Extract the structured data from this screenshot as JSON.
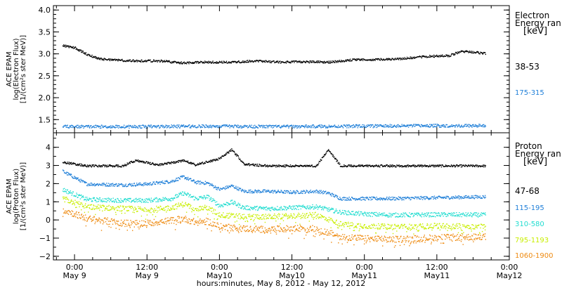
{
  "xlabel": "hours:minutes, May  8, 2012 - May 12, 2012",
  "x_ticks": [
    {
      "t": "0:00",
      "d": "May 9"
    },
    {
      "t": "12:00",
      "d": "May 9"
    },
    {
      "t": "0:00",
      "d": "May10"
    },
    {
      "t": "12:00",
      "d": "May10"
    },
    {
      "t": "0:00",
      "d": "May11"
    },
    {
      "t": "12:00",
      "d": "May11"
    },
    {
      "t": "0:00",
      "d": "May12"
    }
  ],
  "colors": {
    "black": "#000000",
    "blue": "#1f7fd8",
    "cyan": "#22ddd0",
    "yellow": "#c8ee00",
    "orange": "#ee8a10"
  },
  "chart_data": [
    {
      "type": "scatter",
      "title": "",
      "ylabel": [
        "ACE EPAM",
        "log(Electron Flux)",
        "[1/(cm²s ster MeV)]"
      ],
      "ylim": [
        1.2,
        4.1
      ],
      "yticks": [
        "1.5",
        "2.0",
        "2.5",
        "3.0",
        "3.5",
        "4.0"
      ],
      "xlim_hours": [
        -3.5,
        72
      ],
      "legend": {
        "title": [
          "Electron",
          "Energy ran"
        ],
        "unit": "[keV]",
        "entries": [
          {
            "label": "38-53",
            "color": "#000000"
          },
          {
            "label": "175-315",
            "color": "#1f7fd8"
          }
        ]
      },
      "series": [
        {
          "name": "38-53",
          "color": "#000000",
          "x": [
            -2,
            0,
            2,
            4,
            6,
            10,
            14,
            18,
            20,
            22,
            26,
            30,
            34,
            38,
            42,
            46,
            50,
            54,
            58,
            62,
            64,
            66,
            68
          ],
          "y": [
            3.2,
            3.15,
            3.0,
            2.9,
            2.87,
            2.85,
            2.85,
            2.8,
            2.82,
            2.82,
            2.82,
            2.85,
            2.82,
            2.83,
            2.82,
            2.87,
            2.88,
            2.9,
            2.95,
            2.97,
            3.07,
            3.05,
            3.02
          ]
        },
        {
          "name": "175-315",
          "color": "#1f7fd8",
          "x": [
            -2,
            10,
            22,
            34,
            46,
            58,
            68
          ],
          "y": [
            1.35,
            1.35,
            1.36,
            1.35,
            1.36,
            1.37,
            1.37
          ]
        }
      ]
    },
    {
      "type": "scatter",
      "title": "",
      "ylabel": [
        "ACE EPAM",
        "log(Proton Flux)",
        "[1/(cm²s ster MeV)]"
      ],
      "ylim": [
        -2.2,
        4.8
      ],
      "yticks": [
        "−2",
        "−1",
        "0",
        "1",
        "2",
        "3",
        "4"
      ],
      "xlim_hours": [
        -3.5,
        72
      ],
      "legend": {
        "title": [
          "Proton",
          "Energy ran"
        ],
        "unit": "[keV]",
        "entries": [
          {
            "label": "47-68",
            "color": "#000000"
          },
          {
            "label": "115-195",
            "color": "#1f7fd8"
          },
          {
            "label": "310-580",
            "color": "#22ddd0"
          },
          {
            "label": "795-1193",
            "color": "#c8ee00"
          },
          {
            "label": "1060-1900",
            "color": "#ee8a10"
          }
        ]
      },
      "series": [
        {
          "name": "47-68",
          "color": "#000000",
          "x": [
            -2,
            2,
            8,
            10,
            14,
            18,
            20,
            24,
            26,
            28,
            32,
            36,
            40,
            42,
            44,
            48,
            56,
            68
          ],
          "y": [
            3.2,
            3.0,
            3.0,
            3.3,
            3.05,
            3.3,
            3.05,
            3.4,
            3.9,
            3.1,
            3.0,
            3.0,
            3.0,
            3.9,
            3.0,
            3.0,
            3.0,
            3.0
          ]
        },
        {
          "name": "115-195",
          "color": "#1f7fd8",
          "x": [
            -2,
            2,
            8,
            12,
            16,
            18,
            20,
            22,
            24,
            26,
            28,
            32,
            36,
            40,
            42,
            44,
            46,
            52,
            60,
            68
          ],
          "y": [
            2.7,
            2.0,
            1.95,
            2.0,
            2.15,
            2.4,
            2.1,
            2.05,
            1.7,
            1.9,
            1.6,
            1.6,
            1.55,
            1.6,
            1.5,
            1.2,
            1.2,
            1.2,
            1.25,
            1.3
          ]
        },
        {
          "name": "310-580",
          "color": "#22ddd0",
          "x": [
            -2,
            2,
            8,
            12,
            16,
            18,
            20,
            22,
            24,
            26,
            28,
            32,
            36,
            40,
            44,
            48,
            52,
            56,
            60,
            68
          ],
          "y": [
            1.7,
            1.15,
            1.1,
            1.1,
            1.2,
            1.5,
            1.2,
            1.3,
            0.8,
            1.0,
            0.7,
            0.65,
            0.7,
            0.75,
            0.45,
            0.35,
            0.3,
            0.3,
            0.32,
            0.3
          ]
        },
        {
          "name": "795-1193",
          "color": "#c8ee00",
          "x": [
            -2,
            2,
            8,
            12,
            16,
            18,
            20,
            22,
            24,
            28,
            32,
            36,
            40,
            44,
            48,
            52,
            56,
            60,
            68
          ],
          "y": [
            1.2,
            0.75,
            0.65,
            0.6,
            0.7,
            0.9,
            0.65,
            0.7,
            0.3,
            0.2,
            0.2,
            0.25,
            0.3,
            -0.2,
            -0.3,
            -0.35,
            -0.35,
            -0.3,
            -0.35
          ]
        },
        {
          "name": "1060-1900",
          "color": "#ee8a10",
          "x": [
            -2,
            2,
            8,
            12,
            16,
            18,
            20,
            22,
            24,
            28,
            32,
            36,
            40,
            44,
            48,
            52,
            56,
            60,
            68
          ],
          "y": [
            0.6,
            0.1,
            -0.15,
            -0.15,
            0.0,
            0.1,
            -0.1,
            -0.05,
            -0.35,
            -0.45,
            -0.5,
            -0.45,
            -0.45,
            -0.9,
            -1.0,
            -1.05,
            -1.0,
            -0.95,
            -0.9
          ]
        }
      ]
    }
  ]
}
